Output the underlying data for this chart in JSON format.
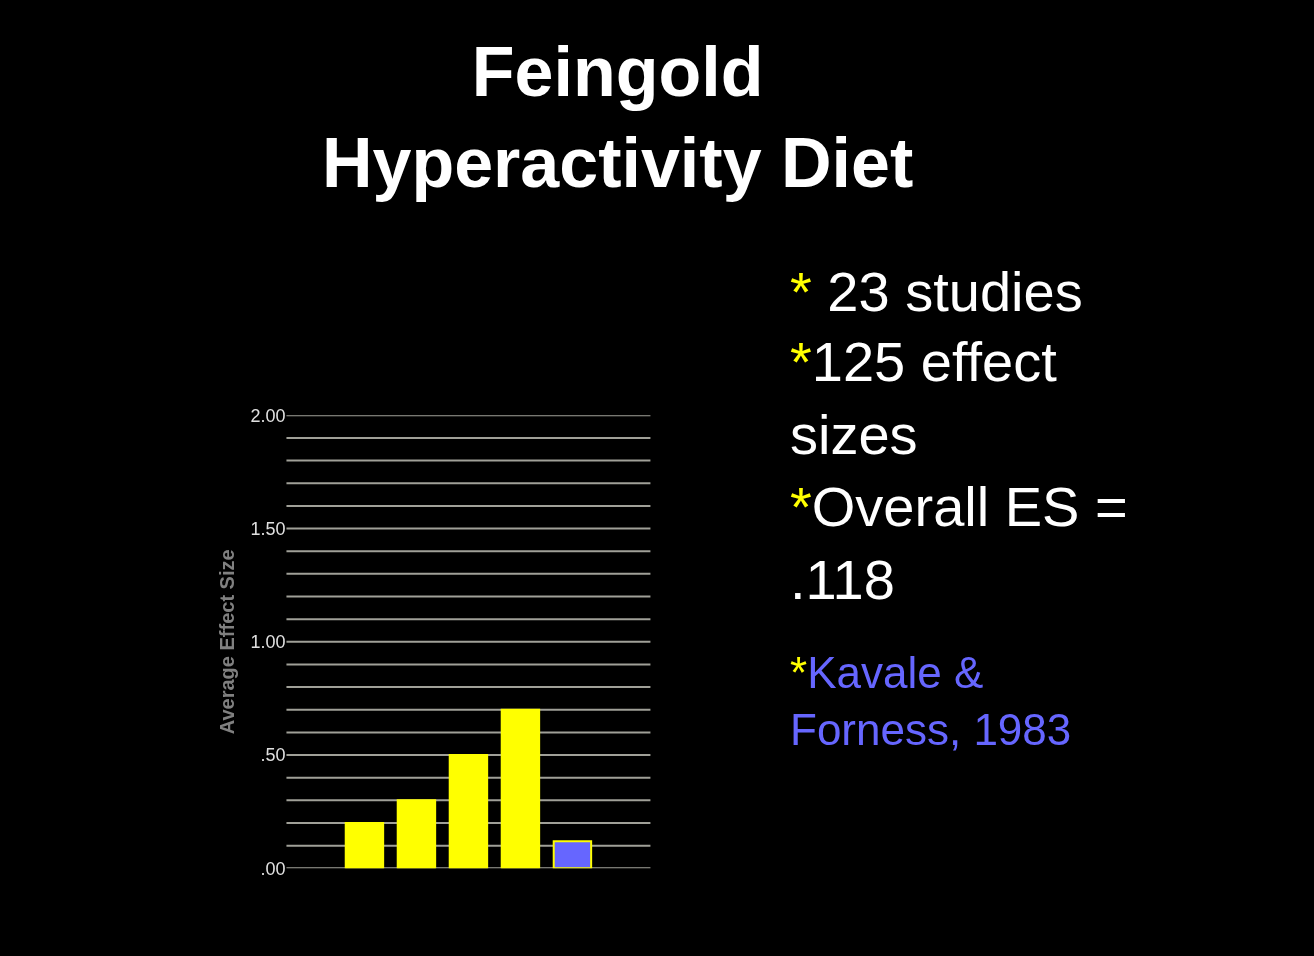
{
  "chart_data": {
    "type": "bar",
    "title": "Feingold\nHyperactivity Diet",
    "ylabel": "Average Effect Size",
    "categories": [
      null,
      null,
      null,
      null,
      null,
      null,
      null
    ],
    "values": [
      null,
      0.2,
      0.3,
      0.5,
      0.7,
      0.12,
      null
    ],
    "colors": [
      "#ffff00",
      "#ffff00",
      "#ffff00",
      "#ffff00",
      "#ffff00",
      "#6666ff",
      "#ffff00"
    ],
    "ylim": [
      0,
      2
    ],
    "yticks": [
      {
        "value": 0,
        "label": ".00"
      },
      {
        "value": 0.1,
        "label": null
      },
      {
        "value": 0.2,
        "label": null
      },
      {
        "value": 0.3,
        "label": null
      },
      {
        "value": 0.4,
        "label": null
      },
      {
        "value": 0.5,
        "label": ".50"
      },
      {
        "value": 0.6,
        "label": null
      },
      {
        "value": 0.7,
        "label": null
      },
      {
        "value": 0.8,
        "label": null
      },
      {
        "value": 0.9,
        "label": null
      },
      {
        "value": 1,
        "label": "1.00"
      },
      {
        "value": 1.1,
        "label": null
      },
      {
        "value": 1.2,
        "label": null
      },
      {
        "value": 1.3,
        "label": null
      },
      {
        "value": 1.4,
        "label": null
      },
      {
        "value": 1.5,
        "label": "1.50"
      },
      {
        "value": 1.6,
        "label": null
      },
      {
        "value": 1.7,
        "label": null
      },
      {
        "value": 1.8,
        "label": null
      },
      {
        "value": 1.9,
        "label": null
      },
      {
        "value": 2,
        "label": "2.00"
      }
    ],
    "grid": "y",
    "annotations": [
      "* 23 studies",
      "*125 effect\nsizes",
      "*Overall ES =\n.118",
      "*Kavale &\nForness, 1983"
    ]
  }
}
